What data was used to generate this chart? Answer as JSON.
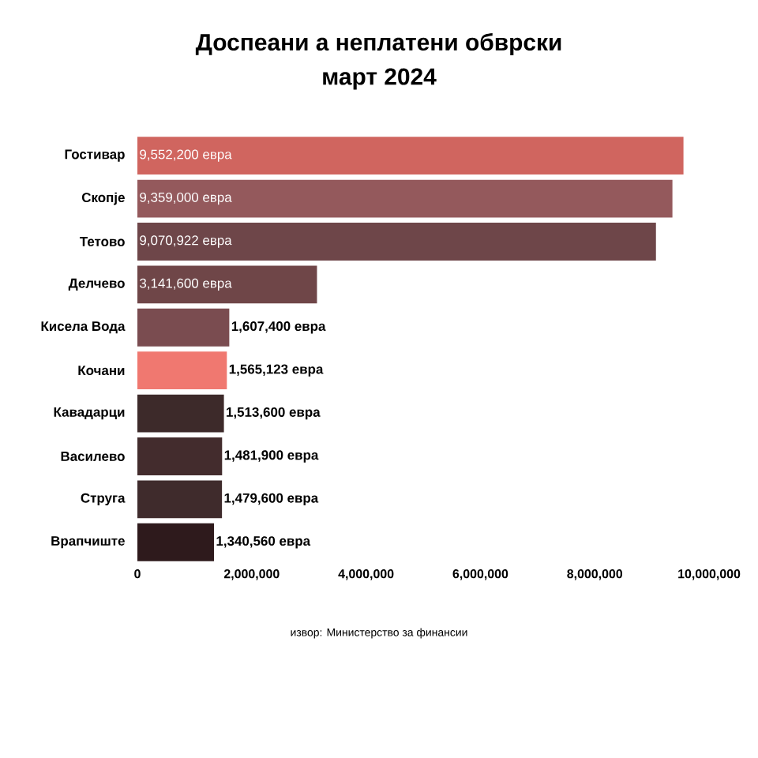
{
  "chart_data": {
    "type": "bar",
    "orientation": "horizontal",
    "title": "Доспеани а неплатени обврски",
    "subtitle": "март 2024",
    "categories": [
      "Гостивар",
      "Скопје",
      "Тетово",
      "Делчево",
      "Кисела Вода",
      "Кочани",
      "Кавадарци",
      "Василево",
      "Струга",
      "Врапчиште"
    ],
    "values": [
      9552200,
      9359000,
      9070922,
      3141600,
      1607400,
      1565123,
      1513600,
      1481900,
      1479600,
      1340560
    ],
    "value_labels": [
      "9,552,200 евра",
      "9,359,000 евра",
      "9,070,922 евра",
      "3,141,600 евра",
      "1,607,400 евра",
      "1,565,123 евра",
      "1,513,600 евра",
      "1,481,900 евра",
      "1,479,600 евра",
      "1,340,560 евра"
    ],
    "colors": [
      "#d0655f",
      "#94595c",
      "#6e4649",
      "#6f4648",
      "#7a4c50",
      "#f07870",
      "#3d2a2a",
      "#432c2d",
      "#3f2b2c",
      "#2e1a1c"
    ],
    "xlim": [
      0,
      10000000
    ],
    "xticks": [
      0,
      {
        "value": 2000000,
        "label": "2,000,000"
      },
      {
        "value": 4000000,
        "label": "4,000,000"
      },
      {
        "value": 6000000,
        "label": "6,000,000"
      },
      {
        "value": 8000000,
        "label": "8,000,000"
      },
      {
        "value": 10000000,
        "label": "10,000,000"
      }
    ],
    "annotations": [
      "извор: Министерство за финансии"
    ]
  }
}
